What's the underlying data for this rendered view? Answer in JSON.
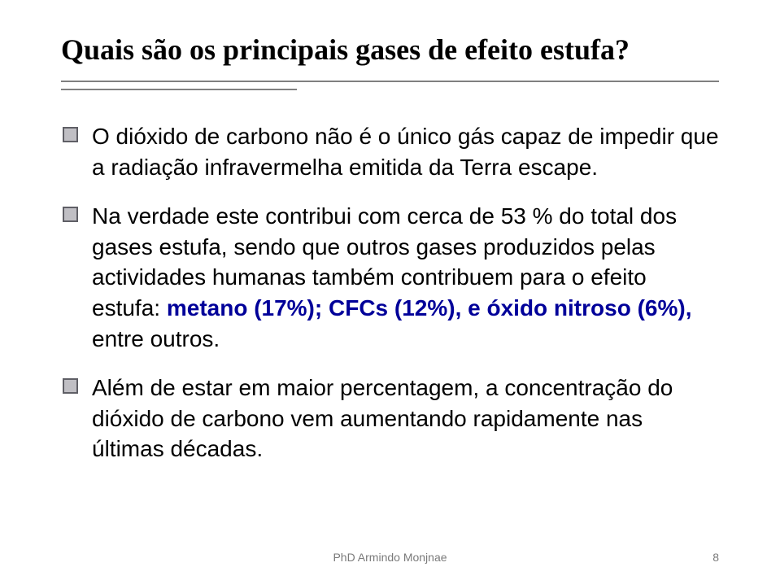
{
  "title": "Quais são os principais gases de efeito estufa?",
  "colors": {
    "title": "#000000",
    "body": "#000000",
    "highlight": "#000099",
    "rule": "#808080",
    "bulletFill": "#c0bfc4",
    "bulletBorder": "#5f5f66",
    "footer": "#7a7a7a",
    "background": "#ffffff"
  },
  "typography": {
    "titleFontFamily": "Times New Roman",
    "titleFontSize": 36,
    "titleWeight": "bold",
    "bodyFontFamily": "Arial",
    "bodyFontSize": 28,
    "footerFontSize": 14
  },
  "bullets": [
    {
      "pre": "O dióxido de carbono não é o único gás capaz de impedir que a radiação infravermelha emitida da Terra escape.",
      "hl": "",
      "post": ""
    },
    {
      "pre": "Na verdade este contribui com cerca de 53 % do total dos gases estufa, sendo que outros gases produzidos pelas actividades humanas também contribuem para o efeito estufa: ",
      "hl": "metano (17%); CFCs (12%), e óxido nitroso (6%),",
      "post": " entre outros."
    },
    {
      "pre": "Além de estar em maior percentagem, a concentração do  dióxido de carbono vem aumentando rapidamente nas últimas décadas.",
      "hl": "",
      "post": ""
    }
  ],
  "footer": {
    "center": "PhD Armindo Monjnae",
    "pageNumber": "8"
  }
}
